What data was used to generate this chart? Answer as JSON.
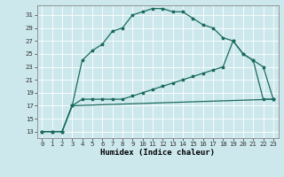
{
  "title": "",
  "xlabel": "Humidex (Indice chaleur)",
  "bg_color": "#cce8ec",
  "grid_color": "#ffffff",
  "line_color": "#1a6b5e",
  "xlim": [
    -0.5,
    23.5
  ],
  "ylim": [
    12.0,
    32.5
  ],
  "yticks": [
    13,
    15,
    17,
    19,
    21,
    23,
    25,
    27,
    29,
    31
  ],
  "xticks": [
    0,
    1,
    2,
    3,
    4,
    5,
    6,
    7,
    8,
    9,
    10,
    11,
    12,
    13,
    14,
    15,
    16,
    17,
    18,
    19,
    20,
    21,
    22,
    23
  ],
  "series1_x": [
    0,
    1,
    2,
    3,
    4,
    5,
    6,
    7,
    8,
    9,
    10,
    11,
    12,
    13,
    14,
    15,
    16,
    17,
    18,
    19,
    20,
    21,
    22,
    23
  ],
  "series1_y": [
    13,
    13,
    13,
    17,
    24,
    25.5,
    26.5,
    28.5,
    29.0,
    31.0,
    31.5,
    32.0,
    32.0,
    31.5,
    31.5,
    30.5,
    29.5,
    29.0,
    27.5,
    27.0,
    25.0,
    24.0,
    23.0,
    18.0
  ],
  "series2_x": [
    0,
    1,
    2,
    3,
    4,
    5,
    6,
    7,
    8,
    9,
    10,
    11,
    12,
    13,
    14,
    15,
    16,
    17,
    18,
    19,
    20,
    21,
    22,
    23
  ],
  "series2_y": [
    13,
    13,
    13,
    17,
    18,
    18,
    18,
    18,
    18,
    18.5,
    19,
    19.5,
    20,
    20.5,
    21,
    21.5,
    22,
    22.5,
    23,
    27,
    25,
    24,
    18,
    18
  ],
  "series3_x": [
    0,
    1,
    2,
    3,
    23
  ],
  "series3_y": [
    13,
    13,
    13,
    17,
    18
  ],
  "marker_size": 2.5,
  "line_width": 0.9,
  "xlabel_fontsize": 6.5,
  "tick_fontsize": 5.2
}
